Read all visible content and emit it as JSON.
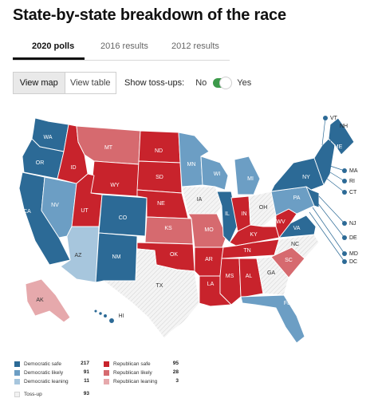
{
  "page": {
    "title": "State-by-state breakdown of the race"
  },
  "tabs": [
    {
      "label": "2020 polls",
      "active": true
    },
    {
      "label": "2016 results",
      "active": false
    },
    {
      "label": "2012 results",
      "active": false
    }
  ],
  "view_toggle": {
    "map_label": "View map",
    "table_label": "View table",
    "selected": "View map"
  },
  "tossups": {
    "label": "Show toss-ups:",
    "no_label": "No",
    "yes_label": "Yes",
    "enabled": true
  },
  "colors": {
    "dem_safe": "#2c6a96",
    "dem_likely": "#6c9ec4",
    "dem_leaning": "#a7c6dd",
    "rep_safe": "#c8232c",
    "rep_likely": "#d66a6f",
    "rep_leaning": "#e6a9ac",
    "tossup": "#f2f2f2"
  },
  "states": {
    "WA": "WA",
    "OR": "OR",
    "CA": "CA",
    "NV": "NV",
    "ID": "ID",
    "MT": "MT",
    "WY": "WY",
    "UT": "UT",
    "AZ": "AZ",
    "CO": "CO",
    "NM": "NM",
    "ND": "ND",
    "SD": "SD",
    "NE": "NE",
    "KS": "KS",
    "OK": "OK",
    "TX": "TX",
    "MN": "MN",
    "IA": "IA",
    "MO": "MO",
    "AR": "AR",
    "LA": "LA",
    "WI": "WI",
    "IL": "IL",
    "MI": "MI",
    "IN": "IN",
    "OH": "OH",
    "KY": "KY",
    "TN": "TN",
    "MS": "MS",
    "AL": "AL",
    "GA": "GA",
    "FL": "FL",
    "SC": "SC",
    "NC": "NC",
    "VA": "VA",
    "WV": "WV",
    "PA": "PA",
    "NY": "NY",
    "ME": "ME",
    "AK": "AK",
    "HI": "HI"
  },
  "callouts": [
    "VT",
    "NH",
    "MA",
    "RI",
    "CT",
    "NJ",
    "DE",
    "MD",
    "DC"
  ],
  "legend": [
    {
      "label": "Democratic safe",
      "count": "217",
      "color": "#2c6a96"
    },
    {
      "label": "Democratic likely",
      "count": "91",
      "color": "#6c9ec4"
    },
    {
      "label": "Democratic leaning",
      "count": "11",
      "color": "#a7c6dd"
    },
    {
      "label": "Republican safe",
      "count": "95",
      "color": "#c8232c"
    },
    {
      "label": "Republican likely",
      "count": "28",
      "color": "#d66a6f"
    },
    {
      "label": "Republican leaning",
      "count": "3",
      "color": "#e6a9ac"
    },
    {
      "label": "Toss-up",
      "count": "93",
      "color": "#f2f2f2"
    }
  ]
}
